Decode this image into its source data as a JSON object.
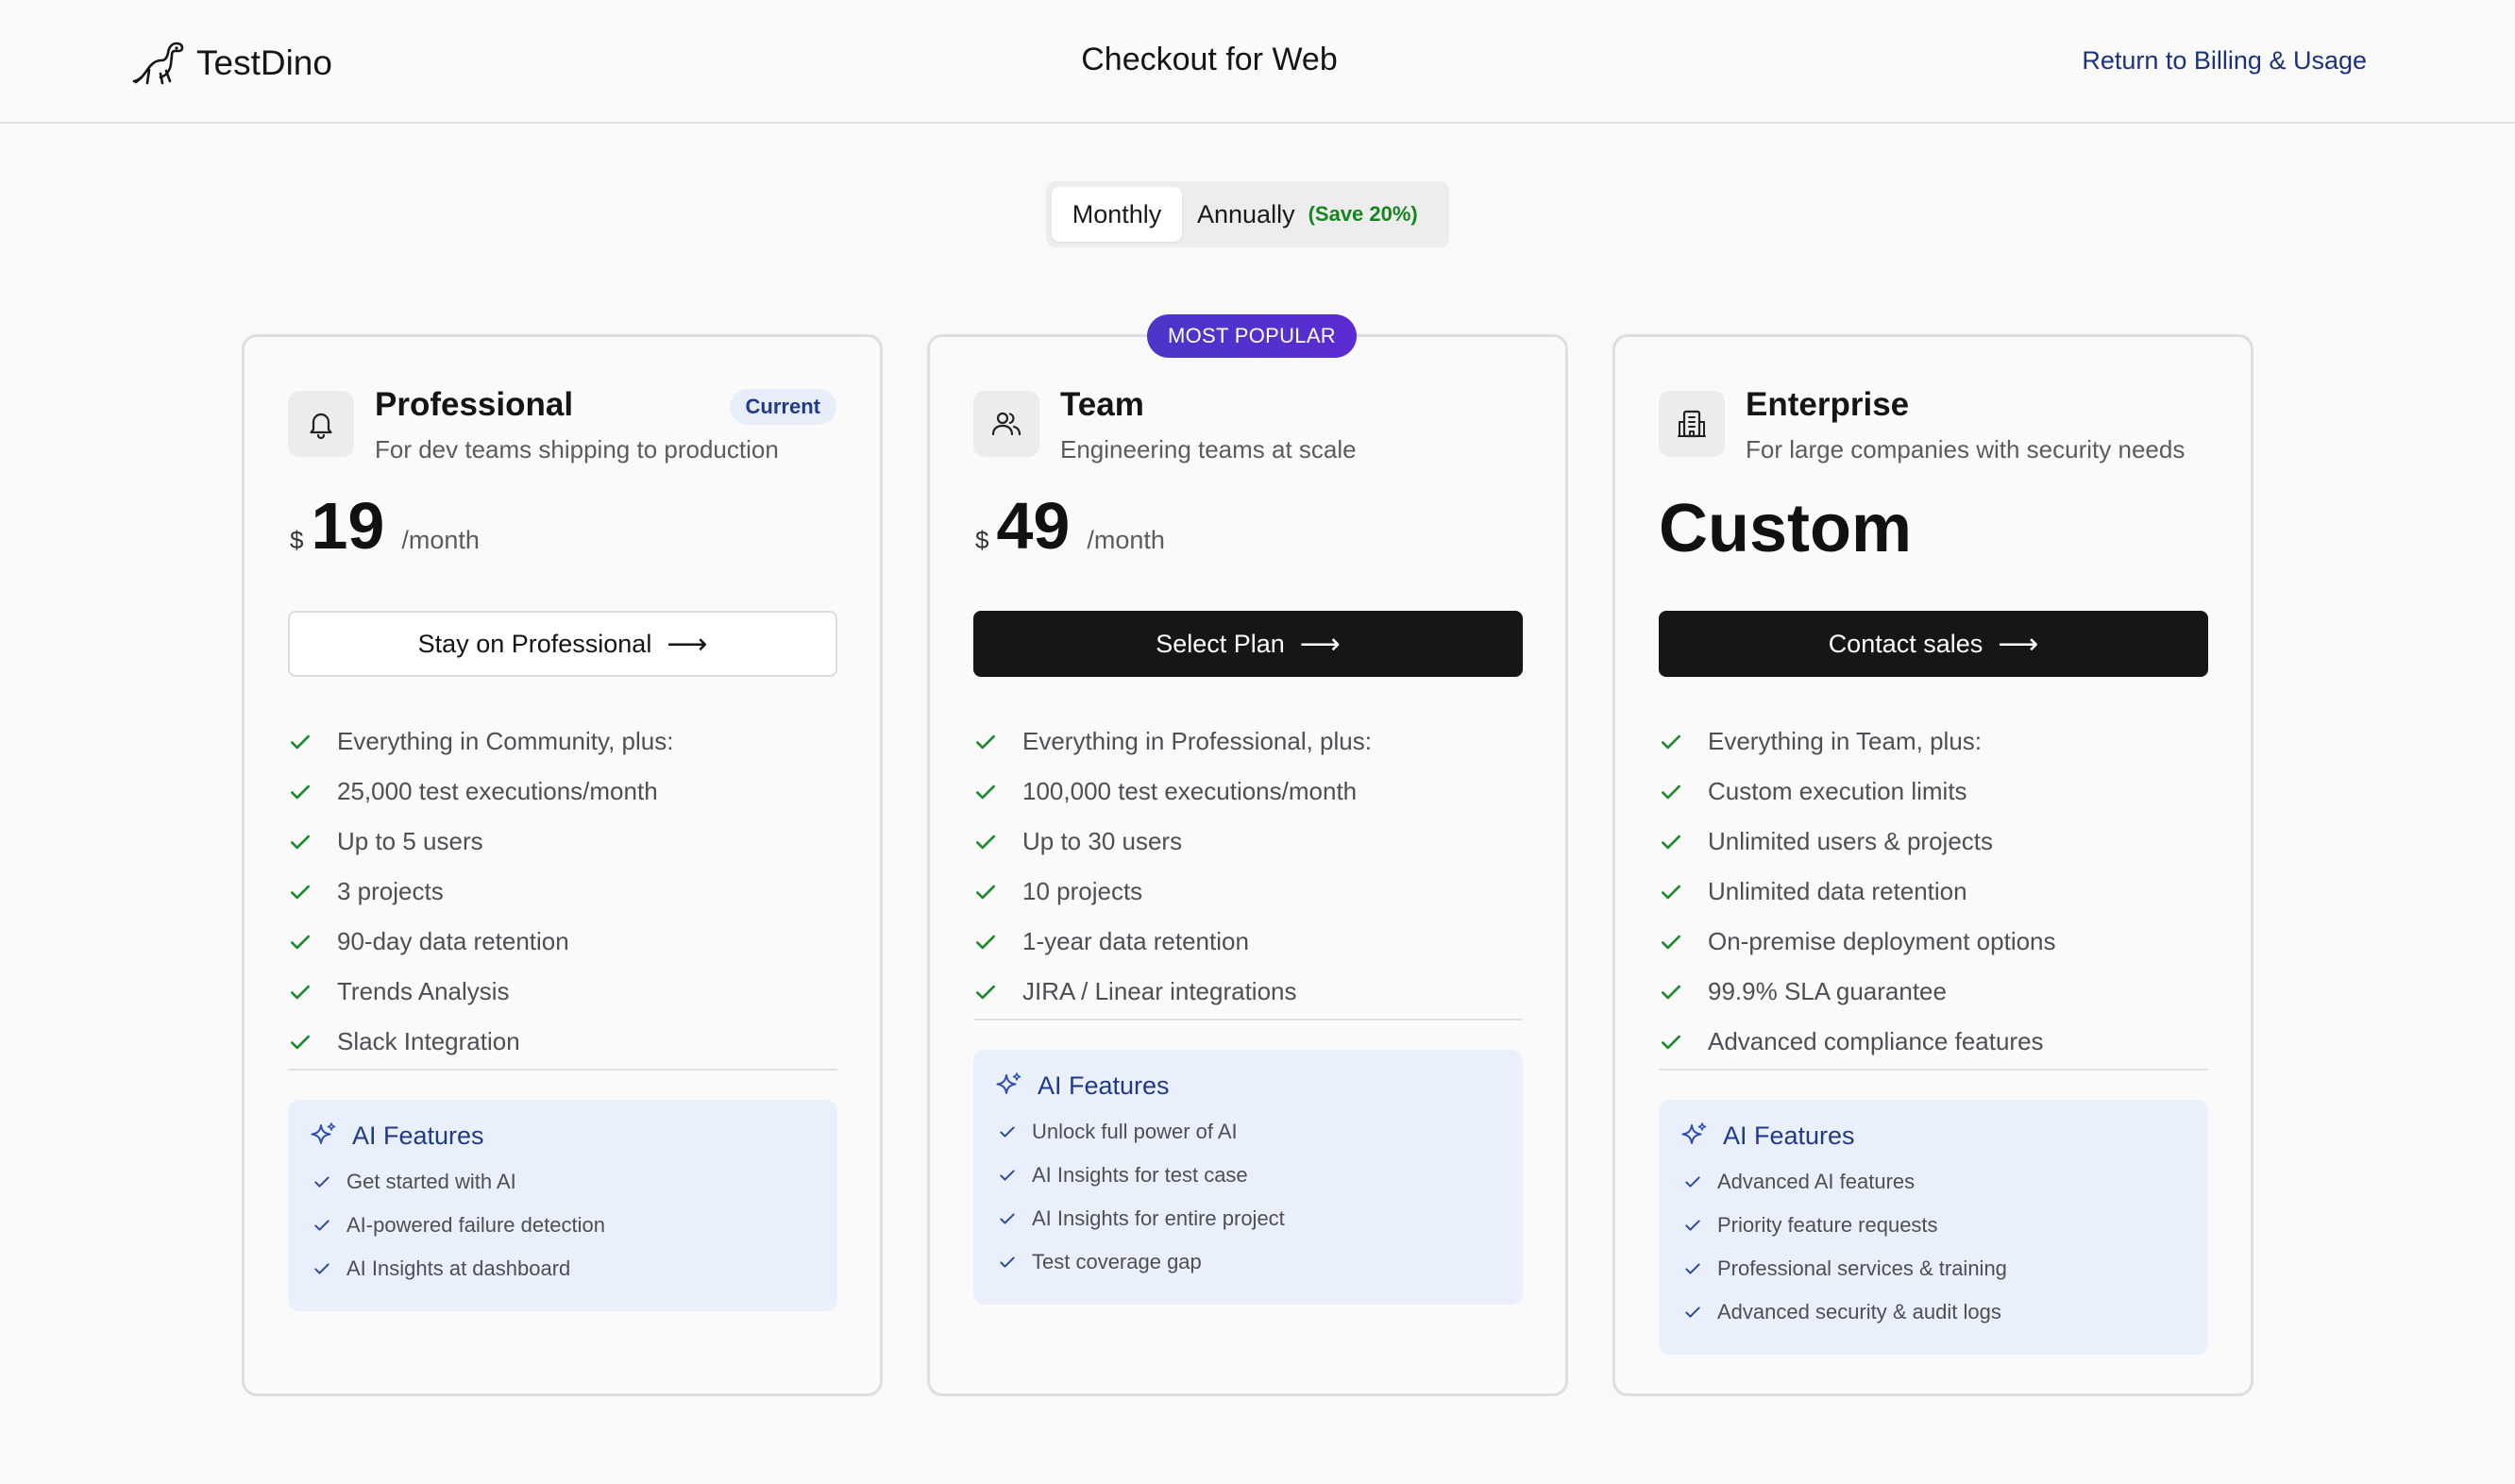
{
  "header": {
    "brand": "TestDino",
    "title": "Checkout for Web",
    "return_link": "Return to Billing & Usage"
  },
  "billing_toggle": {
    "monthly": "Monthly",
    "annually": "Annually",
    "save": "(Save 20%)",
    "selected": "Monthly"
  },
  "plans": [
    {
      "name": "Professional",
      "description": "For dev teams shipping to production",
      "badge": "Current",
      "icon": "bell-icon",
      "currency": "$",
      "price": "19",
      "period": "/month",
      "cta": "Stay on Professional",
      "features": [
        "Everything in Community, plus:",
        "25,000 test executions/month",
        "Up to 5 users",
        "3 projects",
        "90-day data retention",
        "Trends Analysis",
        "Slack Integration"
      ],
      "ai_title": "AI Features",
      "ai_features": [
        "Get started with AI",
        "AI-powered failure detection",
        "AI Insights at dashboard"
      ]
    },
    {
      "name": "Team",
      "description": "Engineering teams at scale",
      "ribbon": "MOST POPULAR",
      "icon": "users-icon",
      "currency": "$",
      "price": "49",
      "period": "/month",
      "cta": "Select Plan",
      "features": [
        "Everything in Professional, plus:",
        "100,000 test executions/month",
        "Up to 30 users",
        "10 projects",
        "1-year data retention",
        "JIRA / Linear integrations"
      ],
      "ai_title": "AI Features",
      "ai_features": [
        "Unlock full power of AI",
        "AI Insights for test case",
        "AI Insights for entire project",
        "Test coverage gap"
      ]
    },
    {
      "name": "Enterprise",
      "description": "For large companies with security needs",
      "icon": "building-icon",
      "price_label": "Custom",
      "cta": "Contact sales",
      "features": [
        "Everything in Team, plus:",
        "Custom execution limits",
        "Unlimited users & projects",
        "Unlimited data retention",
        "On-premise deployment options",
        "99.9% SLA guarantee",
        "Advanced compliance features"
      ],
      "ai_title": "AI Features",
      "ai_features": [
        "Advanced AI features",
        "Priority feature requests",
        "Professional services & training",
        "Advanced security & audit logs"
      ]
    }
  ],
  "colors": {
    "accent_blue": "#1f3a8a",
    "check_green": "#1b8a2a",
    "save_green": "#16851f",
    "popular_purple": "#4a36c9",
    "cta_dark": "#161616"
  }
}
